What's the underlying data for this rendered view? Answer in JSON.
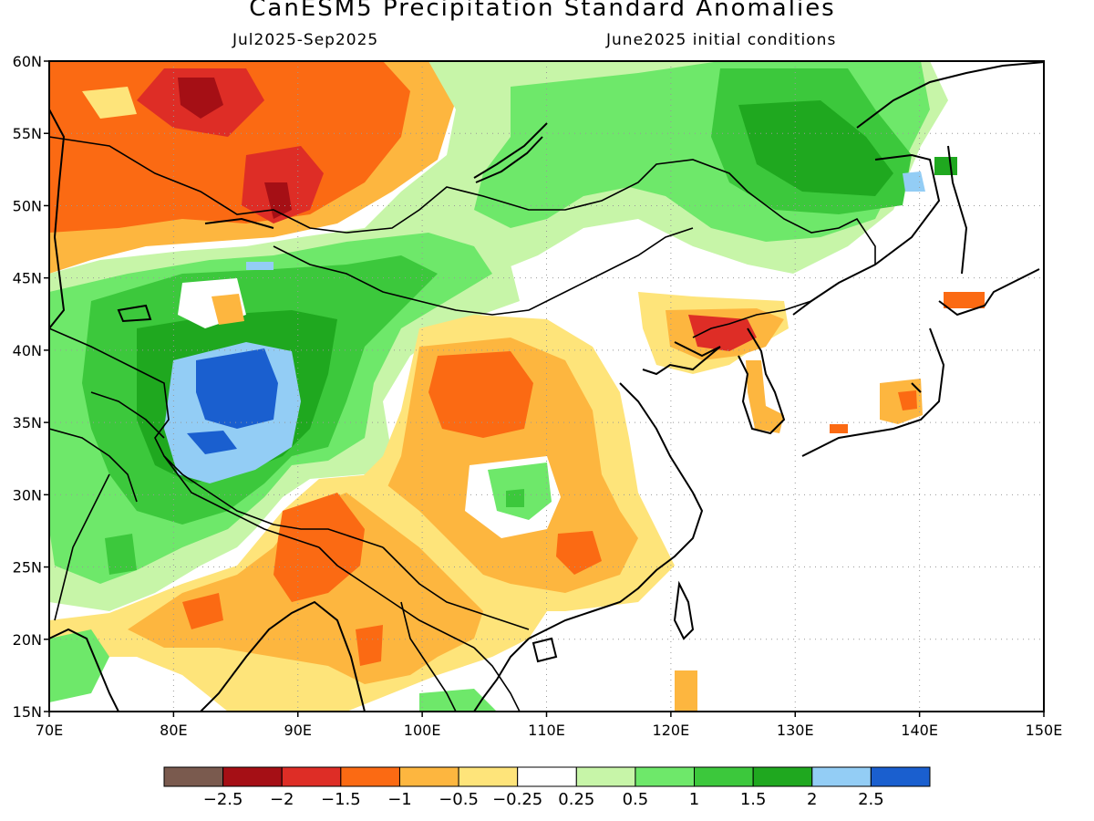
{
  "title": "CanESM5 Precipitation Standard Anomalies",
  "subtitle_left": "Jul2025-Sep2025",
  "subtitle_right": "June2025 initial conditions",
  "lat_labels": [
    "60N",
    "55N",
    "50N",
    "45N",
    "40N",
    "35N",
    "30N",
    "25N",
    "20N",
    "15N"
  ],
  "lon_labels": [
    "70E",
    "80E",
    "90E",
    "100E",
    "110E",
    "120E",
    "130E",
    "140E",
    "150E"
  ],
  "colorbar": {
    "colors": [
      "#7a5a4e",
      "#a50f15",
      "#de2d26",
      "#fb6a13",
      "#fdb63f",
      "#fee47a",
      "#ffffff",
      "#c7f5a8",
      "#6ee86a",
      "#3cc83c",
      "#1fa81f",
      "#93cdf5",
      "#1a5fcf"
    ],
    "labels": [
      "-2.5",
      "-2",
      "-1.5",
      "-1",
      "-0.5",
      "-0.25",
      "0.25",
      "0.5",
      "1",
      "1.5",
      "2",
      "2.5"
    ]
  },
  "palette": {
    "dark_red": "#de2d26",
    "deep_red": "#a50f15",
    "orange": "#fb6a13",
    "light_orange": "#fdb63f",
    "yellow": "#fee47a",
    "light_green": "#c7f5a8",
    "green": "#6ee86a",
    "mid_green": "#3cc83c",
    "dark_green": "#1fa81f",
    "light_blue": "#93cdf5",
    "blue": "#1a5fcf"
  }
}
